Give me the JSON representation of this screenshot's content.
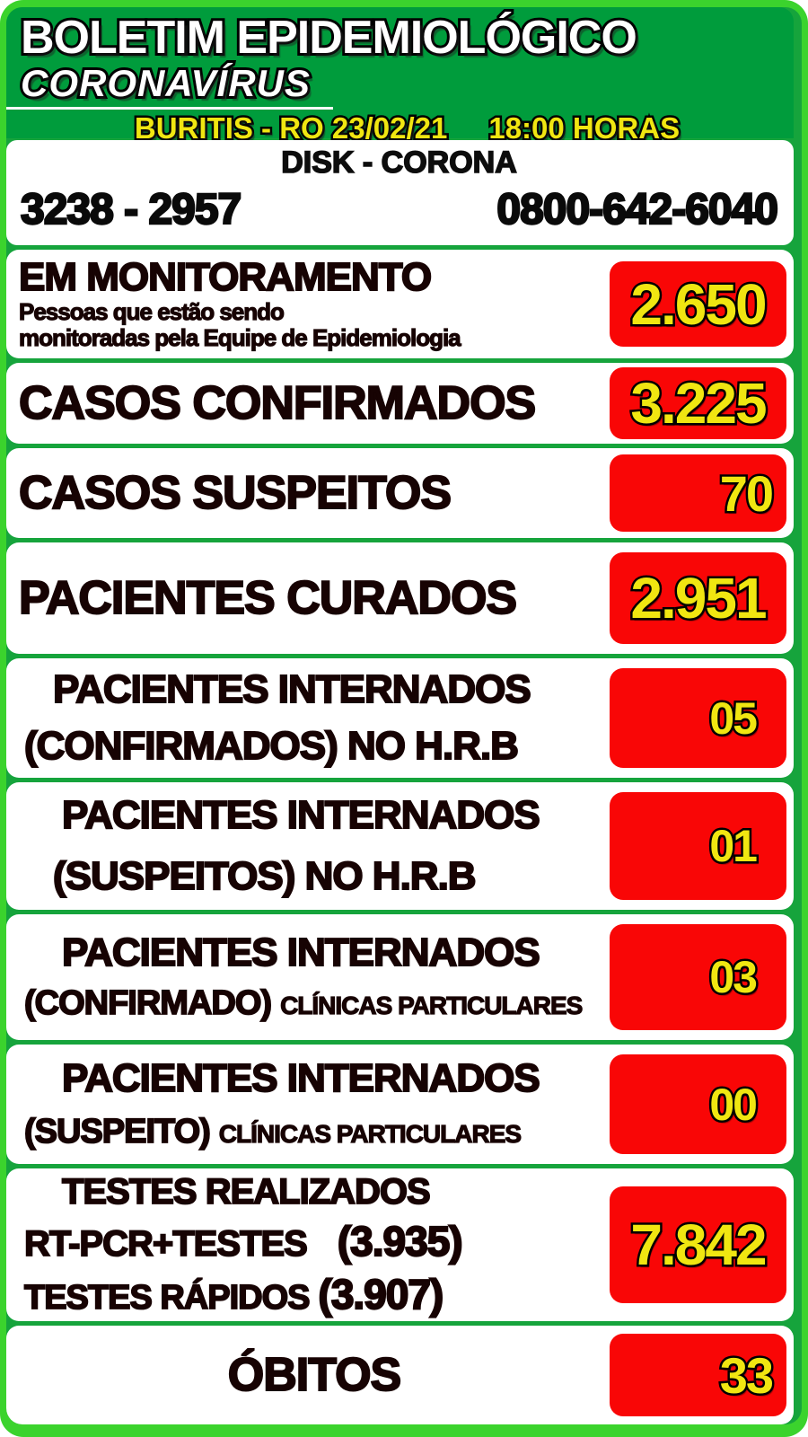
{
  "colors": {
    "outer_green": "#3BD32D",
    "header_green": "#009C3C",
    "separator_green": "#16A43C",
    "box_red": "#F90606",
    "number_yellow": "#F0E611",
    "label_black": "#170303"
  },
  "header": {
    "title": "BOLETIM EPIDEMIOLÓGICO",
    "subtitle": "CORONAVÍRUS",
    "location": "BURITIS - RO 23/02/21",
    "time": "18:00 HORAS"
  },
  "disk": {
    "title": "DISK - CORONA",
    "phone_local": "3238 - 2957",
    "phone_tollfree": "0800-642-6040"
  },
  "rows": [
    {
      "lines": [
        "EM MONITORAMENTO",
        "Pessoas que estão sendo",
        "monitoradas pela Equipe de Epidemiologia"
      ],
      "value": "2.650"
    },
    {
      "lines": [
        "CASOS CONFIRMADOS"
      ],
      "value": "3.225"
    },
    {
      "lines": [
        "CASOS SUSPEITOS"
      ],
      "value": "70"
    },
    {
      "lines": [
        "PACIENTES CURADOS"
      ],
      "value": "2.951"
    },
    {
      "lines": [
        "PACIENTES INTERNADOS",
        "(CONFIRMADOS) NO H.R.B"
      ],
      "value": "05"
    },
    {
      "lines": [
        "PACIENTES INTERNADOS",
        "(SUSPEITOS) NO H.R.B"
      ],
      "value": "01"
    },
    {
      "lines": [
        "PACIENTES INTERNADOS",
        "(CONFIRMADO)",
        "CLÍNICAS PARTICULARES"
      ],
      "value": "03"
    },
    {
      "lines": [
        "PACIENTES INTERNADOS",
        "(SUSPEITO)",
        "CLÍNICAS PARTICULARES"
      ],
      "value": "00"
    },
    {
      "lines": [
        "TESTES REALIZADOS",
        "RT-PCR+TESTES",
        "(3.935)",
        "TESTES RÁPIDOS",
        "(3.907)"
      ],
      "value": "7.842"
    },
    {
      "lines": [
        "ÓBITOS"
      ],
      "value": "33"
    }
  ]
}
